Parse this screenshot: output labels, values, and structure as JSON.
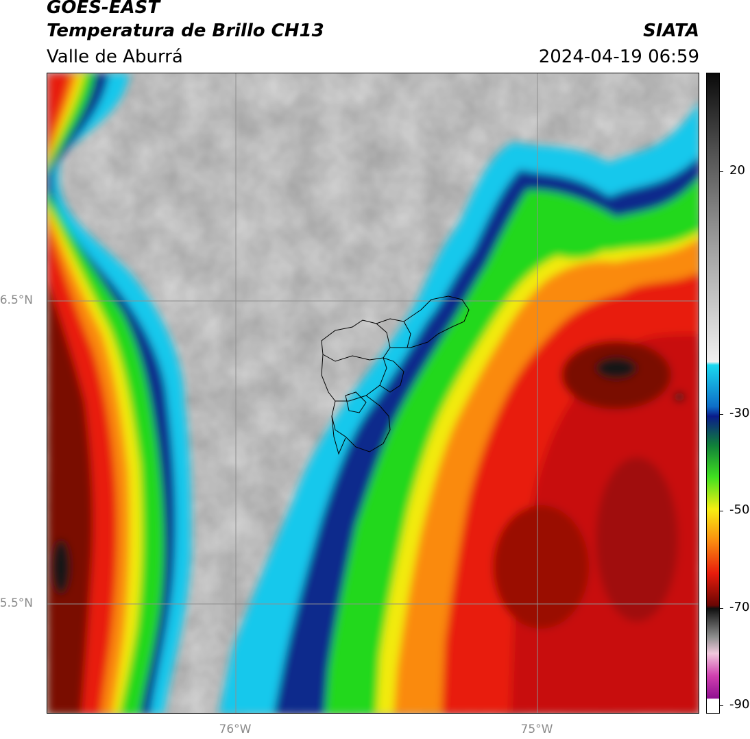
{
  "header": {
    "satellite": "GOES-EAST",
    "product": "Temperatura de Brillo CH13",
    "region": "Valle de Aburrá",
    "agency": "SIATA",
    "datetime": "2024-04-19 06:59"
  },
  "map": {
    "lat_labels": [
      "6.5°N",
      "5.5°N"
    ],
    "lon_labels": [
      "76°W",
      "75°W"
    ],
    "colors": {
      "grid": "#8f8f8f",
      "boundaries": "#000000",
      "warm_gray": "#d8d8d8",
      "cyan": "#19c8ec",
      "blue": "#0a2a8c",
      "green": "#22d81c",
      "yellow": "#f2ea10",
      "orange": "#fa8a10",
      "red": "#e81c0c",
      "dark_red": "#7a0806",
      "black": "#141414"
    }
  },
  "colorbar": {
    "ticks": [
      "20",
      "-30",
      "-50",
      "-70",
      "-90"
    ],
    "tick_values": [
      20,
      -30,
      -50,
      -70,
      -90
    ],
    "range": [
      -90,
      35
    ]
  }
}
